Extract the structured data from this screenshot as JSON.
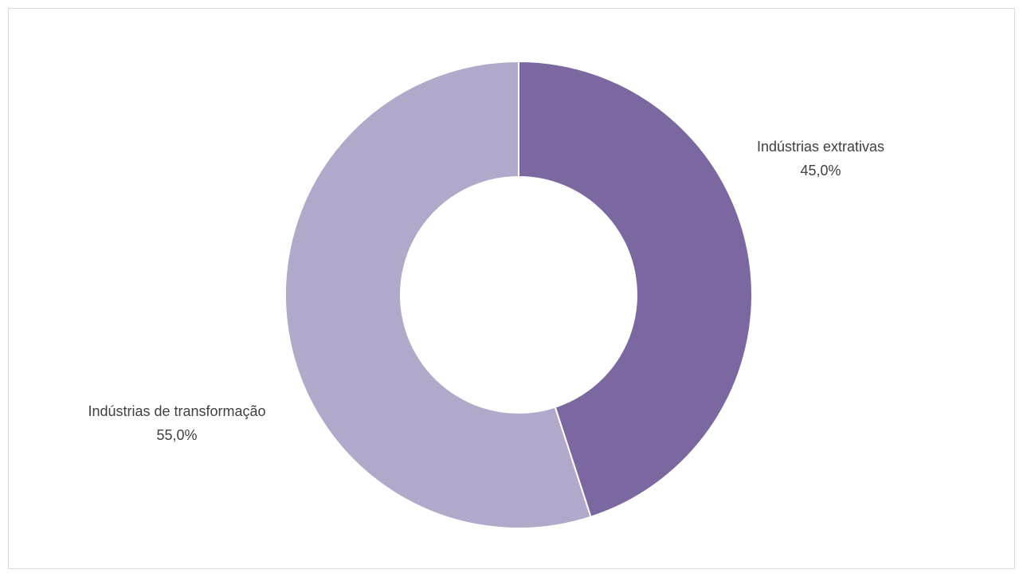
{
  "chart_data": {
    "type": "pie",
    "variant": "donut",
    "title": "",
    "legend": "none",
    "slices": [
      {
        "label": "Indústrias extrativas",
        "value": 45.0,
        "display": "45,0%",
        "color": "#7b68a0"
      },
      {
        "label": "Indústrias de transformação",
        "value": 55.0,
        "display": "55,0%",
        "color": "#b2a8c9"
      }
    ]
  }
}
